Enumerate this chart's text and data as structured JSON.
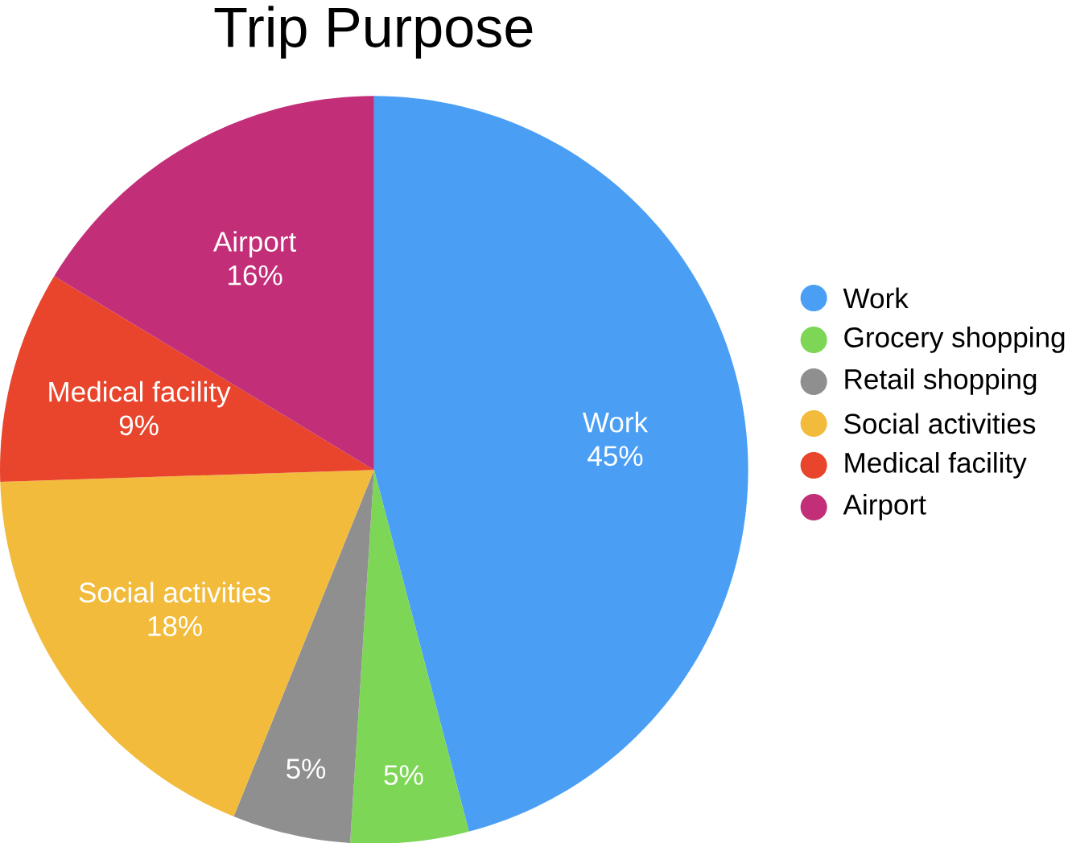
{
  "chart_data": {
    "type": "pie",
    "title": "Trip Purpose",
    "categories": [
      "Work",
      "Grocery shopping",
      "Retail shopping",
      "Social activities",
      "Medical facility",
      "Airport"
    ],
    "values": [
      45,
      5,
      5,
      18,
      9,
      16
    ],
    "value_labels": [
      "45%",
      "5%",
      "5%",
      "18%",
      "9%",
      "16%"
    ],
    "colors": [
      "#4a9ff5",
      "#7dd655",
      "#8f8f8f",
      "#f2bb3c",
      "#e8452c",
      "#c22f78"
    ],
    "legend": "right"
  }
}
